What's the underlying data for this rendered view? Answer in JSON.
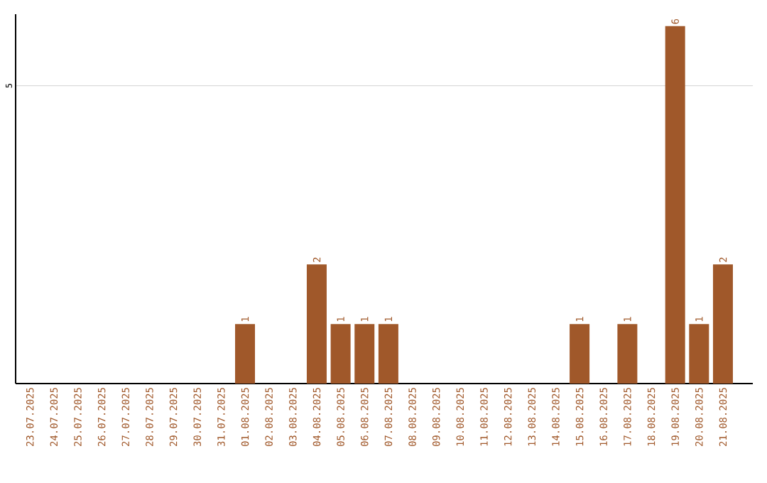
{
  "chart_data": {
    "type": "bar",
    "categories": [
      "23.07.2025",
      "24.07.2025",
      "25.07.2025",
      "26.07.2025",
      "27.07.2025",
      "28.07.2025",
      "29.07.2025",
      "30.07.2025",
      "31.07.2025",
      "01.08.2025",
      "02.08.2025",
      "03.08.2025",
      "04.08.2025",
      "05.08.2025",
      "06.08.2025",
      "07.08.2025",
      "08.08.2025",
      "09.08.2025",
      "10.08.2025",
      "11.08.2025",
      "12.08.2025",
      "13.08.2025",
      "14.08.2025",
      "15.08.2025",
      "16.08.2025",
      "17.08.2025",
      "18.08.2025",
      "19.08.2025",
      "20.08.2025",
      "21.08.2025"
    ],
    "values": [
      0,
      0,
      0,
      0,
      0,
      0,
      0,
      0,
      0,
      1,
      0,
      0,
      2,
      1,
      1,
      1,
      0,
      0,
      0,
      0,
      0,
      0,
      0,
      1,
      0,
      1,
      0,
      6,
      1,
      2
    ],
    "value_labels": [
      null,
      null,
      null,
      null,
      null,
      null,
      null,
      null,
      null,
      "1",
      null,
      null,
      "2",
      "1",
      "1",
      "1",
      null,
      null,
      null,
      null,
      null,
      null,
      null,
      "1",
      null,
      "1",
      null,
      "6",
      "1",
      "2"
    ],
    "color": "#a0582a",
    "ylim": [
      0,
      6.2
    ],
    "yticks": [
      5
    ],
    "grid": "y"
  }
}
